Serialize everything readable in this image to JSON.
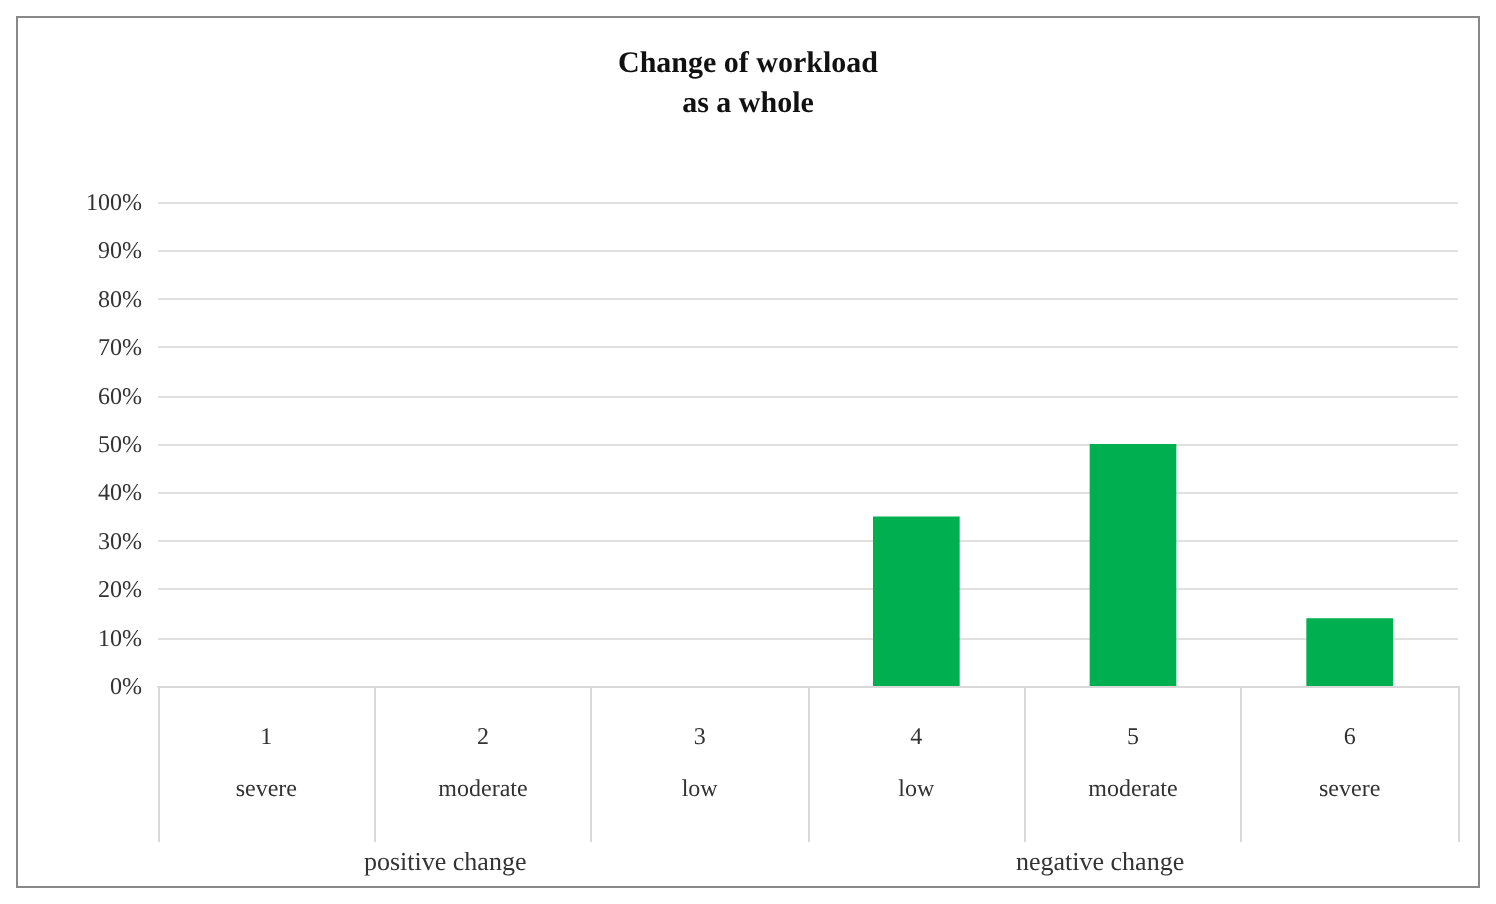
{
  "chart_data": {
    "type": "bar",
    "title": "Change of workload\nas a whole",
    "categories": [
      "1\nsevere",
      "2\nmoderate",
      "3\nlow",
      "4\nlow",
      "5\nmoderate",
      "6\nsevere"
    ],
    "values": [
      0,
      0,
      0,
      35,
      50,
      14
    ],
    "color": "#00b050",
    "ylim": [
      0,
      100
    ],
    "yticks": [
      {
        "value": 0,
        "label": "0%"
      },
      {
        "value": 10,
        "label": "10%"
      },
      {
        "value": 20,
        "label": "20%"
      },
      {
        "value": 30,
        "label": "30%"
      },
      {
        "value": 40,
        "label": "40%"
      },
      {
        "value": 50,
        "label": "50%"
      },
      {
        "value": 60,
        "label": "60%"
      },
      {
        "value": 70,
        "label": "70%"
      },
      {
        "value": 80,
        "label": "80%"
      },
      {
        "value": 90,
        "label": "90%"
      },
      {
        "value": 100,
        "label": "100%"
      }
    ],
    "grid": true,
    "annotations": [
      "positive change",
      "negative change"
    ]
  }
}
